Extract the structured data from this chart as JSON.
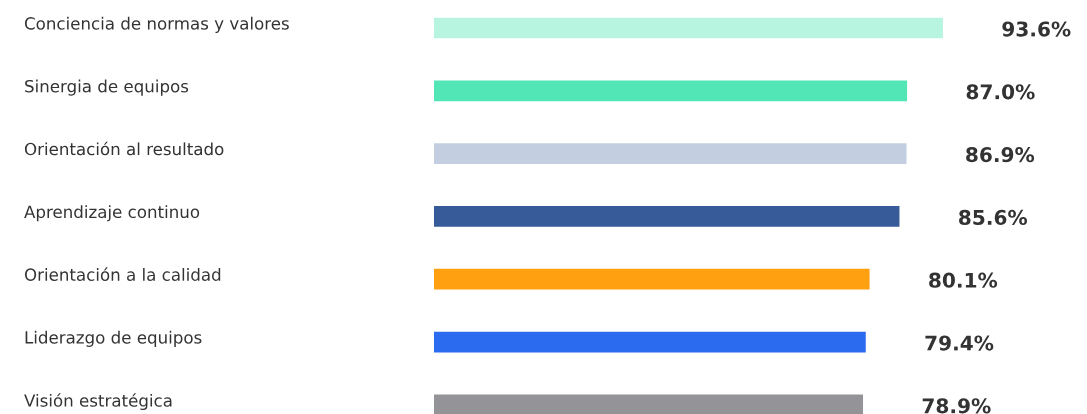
{
  "chart_data": {
    "type": "bar",
    "orientation": "horizontal",
    "categories": [
      "Conciencia de normas y valores",
      "Sinergia de equipos",
      "Orientación al resultado",
      "Aprendizaje continuo",
      "Orientación a la calidad",
      "Liderazgo de equipos",
      "Visión estratégica"
    ],
    "values": [
      93.6,
      87.0,
      86.9,
      85.6,
      80.1,
      79.4,
      78.9
    ],
    "colors": [
      "#b8f5e0",
      "#52e5b5",
      "#c3cfe0",
      "#365b98",
      "#ffa010",
      "#2a6bef",
      "#939398"
    ],
    "value_labels": [
      "93.6%",
      "87.0%",
      "86.9%",
      "85.6%",
      "80.1%",
      "79.4%",
      "78.9%"
    ],
    "legend": false
  }
}
